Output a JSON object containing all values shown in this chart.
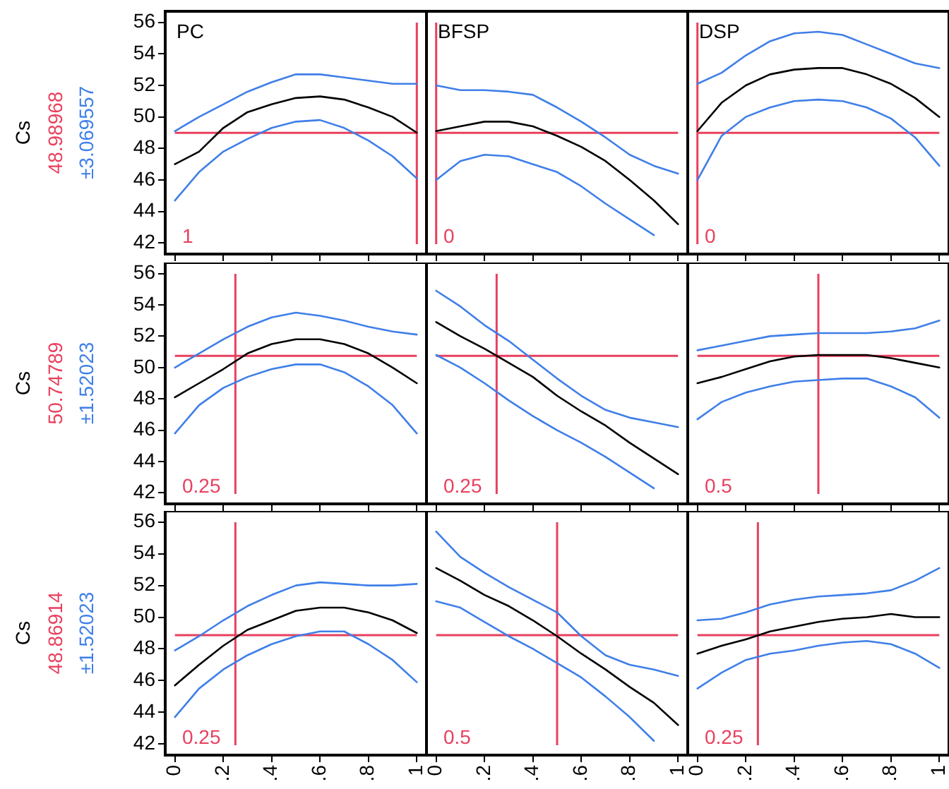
{
  "chart_data": [
    {
      "type": "line",
      "title": "PC",
      "ylabel": "Cs",
      "x": [
        0,
        0.1,
        0.2,
        0.3,
        0.4,
        0.5,
        0.6,
        0.7,
        0.8,
        0.9,
        1
      ],
      "xlim": [
        -0.04,
        1.04
      ],
      "ylim": [
        41.3,
        56.7
      ],
      "xticks": [
        0,
        0.2,
        0.4,
        0.6,
        0.8,
        1
      ],
      "yticks": [
        42,
        44,
        46,
        48,
        50,
        52,
        54,
        56
      ],
      "tick_labels": "y",
      "grid": false,
      "legend": false,
      "marker": "none",
      "line_style": "solid",
      "series": [
        {
          "color": "#000000",
          "values": [
            47.0,
            47.8,
            49.3,
            50.3,
            50.8,
            51.2,
            51.3,
            51.1,
            50.6,
            50.0,
            49.0
          ]
        },
        {
          "color": "#3f7fe8",
          "values": [
            49.1,
            50.0,
            50.8,
            51.6,
            52.2,
            52.7,
            52.7,
            52.5,
            52.3,
            52.1,
            52.1
          ]
        },
        {
          "color": "#3f7fe8",
          "values": [
            44.7,
            46.5,
            47.8,
            48.6,
            49.3,
            49.7,
            49.8,
            49.3,
            48.5,
            47.5,
            46.1
          ]
        }
      ],
      "ref_lines": [
        {
          "axis": "y",
          "value": 48.98968,
          "label": "48.98968",
          "color": "#e8405e"
        },
        {
          "axis": "x",
          "value": 1,
          "label": "1",
          "color": "#e8405e"
        }
      ],
      "annotations": [
        "±3.069557"
      ]
    },
    {
      "type": "line",
      "title": "BFSP",
      "x": [
        0,
        0.1,
        0.2,
        0.3,
        0.4,
        0.5,
        0.6,
        0.7,
        0.8,
        0.9,
        1
      ],
      "xlim": [
        -0.04,
        1.04
      ],
      "ylim": [
        41.3,
        56.7
      ],
      "xticks": [
        0,
        0.2,
        0.4,
        0.6,
        0.8,
        1
      ],
      "tick_labels": false,
      "grid": false,
      "legend": false,
      "marker": "none",
      "line_style": "solid",
      "series": [
        {
          "color": "#000000",
          "values": [
            49.1,
            49.4,
            49.7,
            49.7,
            49.4,
            48.8,
            48.1,
            47.2,
            46.0,
            44.7,
            43.2
          ]
        },
        {
          "color": "#3f7fe8",
          "values": [
            52.0,
            51.7,
            51.7,
            51.6,
            51.4,
            50.6,
            49.7,
            48.7,
            47.6,
            46.9,
            46.4
          ]
        },
        {
          "color": "#3f7fe8",
          "values": [
            46.0,
            47.2,
            47.6,
            47.5,
            47.0,
            46.5,
            45.6,
            44.5,
            43.5,
            42.5,
            null
          ]
        }
      ],
      "ref_lines": [
        {
          "axis": "y",
          "value": 48.98968,
          "color": "#e8405e"
        },
        {
          "axis": "x",
          "value": 0,
          "label": "0",
          "color": "#e8405e"
        }
      ]
    },
    {
      "type": "line",
      "title": "DSP",
      "x": [
        0,
        0.1,
        0.2,
        0.3,
        0.4,
        0.5,
        0.6,
        0.7,
        0.8,
        0.9,
        1
      ],
      "xlim": [
        -0.04,
        1.04
      ],
      "ylim": [
        41.3,
        56.7
      ],
      "xticks": [
        0,
        0.2,
        0.4,
        0.6,
        0.8,
        1
      ],
      "tick_labels": false,
      "grid": false,
      "legend": false,
      "marker": "none",
      "line_style": "solid",
      "series": [
        {
          "color": "#000000",
          "values": [
            49.1,
            50.9,
            52.0,
            52.7,
            53.0,
            53.1,
            53.1,
            52.7,
            52.1,
            51.2,
            50.0
          ]
        },
        {
          "color": "#3f7fe8",
          "values": [
            52.1,
            52.8,
            53.9,
            54.8,
            55.3,
            55.4,
            55.2,
            54.6,
            54.0,
            53.4,
            53.1
          ]
        },
        {
          "color": "#3f7fe8",
          "values": [
            46.0,
            48.8,
            50.0,
            50.6,
            51.0,
            51.1,
            51.0,
            50.6,
            49.9,
            48.7,
            46.9
          ]
        }
      ],
      "ref_lines": [
        {
          "axis": "y",
          "value": 48.98968,
          "color": "#e8405e"
        },
        {
          "axis": "x",
          "value": 0,
          "label": "0",
          "color": "#e8405e"
        }
      ]
    },
    {
      "type": "line",
      "ylabel": "Cs",
      "x": [
        0,
        0.1,
        0.2,
        0.3,
        0.4,
        0.5,
        0.6,
        0.7,
        0.8,
        0.9,
        1
      ],
      "xlim": [
        -0.04,
        1.04
      ],
      "ylim": [
        41.3,
        56.7
      ],
      "xticks": [
        0,
        0.2,
        0.4,
        0.6,
        0.8,
        1
      ],
      "yticks": [
        42,
        44,
        46,
        48,
        50,
        52,
        54,
        56
      ],
      "tick_labels": "y",
      "grid": false,
      "legend": false,
      "marker": "none",
      "line_style": "solid",
      "series": [
        {
          "color": "#000000",
          "values": [
            48.1,
            49.0,
            49.9,
            50.9,
            51.5,
            51.8,
            51.8,
            51.5,
            50.9,
            50.0,
            49.0
          ]
        },
        {
          "color": "#3f7fe8",
          "values": [
            50.0,
            50.9,
            51.8,
            52.6,
            53.2,
            53.5,
            53.3,
            53.0,
            52.6,
            52.3,
            52.1
          ]
        },
        {
          "color": "#3f7fe8",
          "values": [
            45.8,
            47.6,
            48.7,
            49.4,
            49.9,
            50.2,
            50.2,
            49.7,
            48.8,
            47.6,
            45.8
          ]
        }
      ],
      "ref_lines": [
        {
          "axis": "y",
          "value": 50.74789,
          "label": "50.74789",
          "color": "#e8405e"
        },
        {
          "axis": "x",
          "value": 0.25,
          "label": "0.25",
          "color": "#e8405e"
        }
      ],
      "annotations": [
        "±1.52023"
      ]
    },
    {
      "type": "line",
      "x": [
        0,
        0.1,
        0.2,
        0.3,
        0.4,
        0.5,
        0.6,
        0.7,
        0.8,
        0.9,
        1
      ],
      "xlim": [
        -0.04,
        1.04
      ],
      "ylim": [
        41.3,
        56.7
      ],
      "xticks": [
        0,
        0.2,
        0.4,
        0.6,
        0.8,
        1
      ],
      "tick_labels": false,
      "grid": false,
      "legend": false,
      "marker": "none",
      "line_style": "solid",
      "series": [
        {
          "color": "#000000",
          "values": [
            52.9,
            52.0,
            51.2,
            50.3,
            49.4,
            48.2,
            47.2,
            46.3,
            45.2,
            44.2,
            43.2
          ]
        },
        {
          "color": "#3f7fe8",
          "values": [
            54.9,
            53.9,
            52.7,
            51.7,
            50.5,
            49.3,
            48.2,
            47.3,
            46.8,
            46.5,
            46.2
          ]
        },
        {
          "color": "#3f7fe8",
          "values": [
            50.8,
            50.0,
            49.0,
            47.9,
            46.9,
            46.0,
            45.2,
            44.3,
            43.3,
            42.3,
            null
          ]
        }
      ],
      "ref_lines": [
        {
          "axis": "y",
          "value": 50.74789,
          "color": "#e8405e"
        },
        {
          "axis": "x",
          "value": 0.25,
          "label": "0.25",
          "color": "#e8405e"
        }
      ]
    },
    {
      "type": "line",
      "x": [
        0,
        0.1,
        0.2,
        0.3,
        0.4,
        0.5,
        0.6,
        0.7,
        0.8,
        0.9,
        1
      ],
      "xlim": [
        -0.04,
        1.04
      ],
      "ylim": [
        41.3,
        56.7
      ],
      "xticks": [
        0,
        0.2,
        0.4,
        0.6,
        0.8,
        1
      ],
      "tick_labels": false,
      "grid": false,
      "legend": false,
      "marker": "none",
      "line_style": "solid",
      "series": [
        {
          "color": "#000000",
          "values": [
            49.0,
            49.4,
            49.9,
            50.4,
            50.7,
            50.8,
            50.8,
            50.8,
            50.6,
            50.3,
            50.0
          ]
        },
        {
          "color": "#3f7fe8",
          "values": [
            51.1,
            51.4,
            51.7,
            52.0,
            52.1,
            52.2,
            52.2,
            52.2,
            52.3,
            52.5,
            53.0
          ]
        },
        {
          "color": "#3f7fe8",
          "values": [
            46.7,
            47.8,
            48.4,
            48.8,
            49.1,
            49.2,
            49.3,
            49.3,
            48.8,
            48.1,
            46.8
          ]
        }
      ],
      "ref_lines": [
        {
          "axis": "y",
          "value": 50.74789,
          "color": "#e8405e"
        },
        {
          "axis": "x",
          "value": 0.5,
          "label": "0.5",
          "color": "#e8405e"
        }
      ]
    },
    {
      "type": "line",
      "ylabel": "Cs",
      "x": [
        0,
        0.1,
        0.2,
        0.3,
        0.4,
        0.5,
        0.6,
        0.7,
        0.8,
        0.9,
        1
      ],
      "xlim": [
        -0.04,
        1.04
      ],
      "ylim": [
        41.3,
        56.7
      ],
      "xticks": [
        0,
        {
          "value": 0.2,
          "label": ".2"
        },
        {
          "value": 0.4,
          "label": ".4"
        },
        {
          "value": 0.6,
          "label": ".6"
        },
        {
          "value": 0.8,
          "label": ".8"
        },
        1
      ],
      "yticks": [
        42,
        44,
        46,
        48,
        50,
        52,
        54,
        56
      ],
      "grid": false,
      "legend": false,
      "marker": "none",
      "line_style": "solid",
      "series": [
        {
          "color": "#000000",
          "values": [
            45.7,
            47.0,
            48.2,
            49.2,
            49.8,
            50.4,
            50.6,
            50.6,
            50.3,
            49.8,
            49.0
          ]
        },
        {
          "color": "#3f7fe8",
          "values": [
            47.9,
            48.8,
            49.8,
            50.7,
            51.4,
            52.0,
            52.2,
            52.1,
            52.0,
            52.0,
            52.1
          ]
        },
        {
          "color": "#3f7fe8",
          "values": [
            43.7,
            45.5,
            46.7,
            47.6,
            48.3,
            48.8,
            49.1,
            49.1,
            48.3,
            47.3,
            45.9
          ]
        }
      ],
      "ref_lines": [
        {
          "axis": "y",
          "value": 48.86914,
          "label": "48.86914",
          "color": "#e8405e"
        },
        {
          "axis": "x",
          "value": 0.25,
          "label": "0.25",
          "color": "#e8405e"
        }
      ],
      "annotations": [
        "±1.52023"
      ]
    },
    {
      "type": "line",
      "x": [
        0,
        0.1,
        0.2,
        0.3,
        0.4,
        0.5,
        0.6,
        0.7,
        0.8,
        0.9,
        1
      ],
      "xlim": [
        -0.04,
        1.04
      ],
      "ylim": [
        41.3,
        56.7
      ],
      "xticks": [
        0,
        {
          "value": 0.2,
          "label": ".2"
        },
        {
          "value": 0.4,
          "label": ".4"
        },
        {
          "value": 0.6,
          "label": ".6"
        },
        {
          "value": 0.8,
          "label": ".8"
        },
        1
      ],
      "tick_labels": "x",
      "grid": false,
      "legend": false,
      "marker": "none",
      "line_style": "solid",
      "series": [
        {
          "color": "#000000",
          "values": [
            53.1,
            52.3,
            51.4,
            50.7,
            49.8,
            48.8,
            47.7,
            46.7,
            45.6,
            44.6,
            43.2
          ]
        },
        {
          "color": "#3f7fe8",
          "values": [
            55.4,
            53.8,
            52.8,
            51.9,
            51.1,
            50.3,
            48.8,
            47.6,
            47.0,
            46.7,
            46.3
          ]
        },
        {
          "color": "#3f7fe8",
          "values": [
            51.0,
            50.6,
            49.7,
            48.8,
            48.0,
            47.1,
            46.2,
            45.0,
            43.7,
            42.2,
            null
          ]
        }
      ],
      "ref_lines": [
        {
          "axis": "y",
          "value": 48.86914,
          "color": "#e8405e"
        },
        {
          "axis": "x",
          "value": 0.5,
          "label": "0.5",
          "color": "#e8405e"
        }
      ]
    },
    {
      "type": "line",
      "x": [
        0,
        0.1,
        0.2,
        0.3,
        0.4,
        0.5,
        0.6,
        0.7,
        0.8,
        0.9,
        1
      ],
      "xlim": [
        -0.04,
        1.04
      ],
      "ylim": [
        41.3,
        56.7
      ],
      "xticks": [
        0,
        {
          "value": 0.2,
          "label": ".2"
        },
        {
          "value": 0.4,
          "label": ".4"
        },
        {
          "value": 0.6,
          "label": ".6"
        },
        {
          "value": 0.8,
          "label": ".8"
        },
        1
      ],
      "tick_labels": "x",
      "grid": false,
      "legend": false,
      "marker": "none",
      "line_style": "solid",
      "series": [
        {
          "color": "#000000",
          "values": [
            47.7,
            48.2,
            48.6,
            49.1,
            49.4,
            49.7,
            49.9,
            50.0,
            50.2,
            50.0,
            50.0
          ]
        },
        {
          "color": "#3f7fe8",
          "values": [
            49.8,
            49.9,
            50.3,
            50.8,
            51.1,
            51.3,
            51.4,
            51.5,
            51.7,
            52.3,
            53.1
          ]
        },
        {
          "color": "#3f7fe8",
          "values": [
            45.5,
            46.5,
            47.3,
            47.7,
            47.9,
            48.2,
            48.4,
            48.5,
            48.3,
            47.7,
            46.8
          ]
        }
      ],
      "ref_lines": [
        {
          "axis": "y",
          "value": 48.86914,
          "color": "#e8405e"
        },
        {
          "axis": "x",
          "value": 0.25,
          "label": "0.25",
          "color": "#e8405e"
        }
      ]
    }
  ]
}
